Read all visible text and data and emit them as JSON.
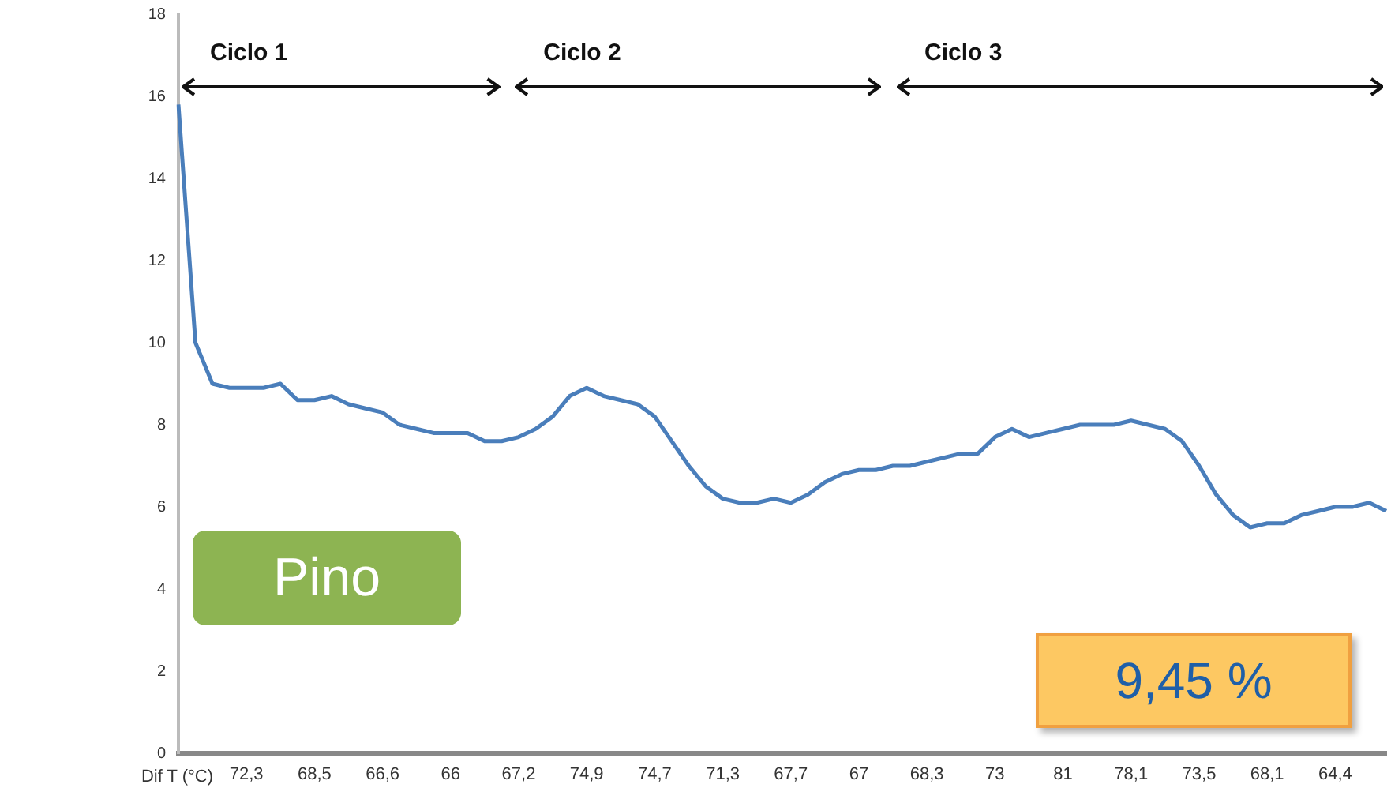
{
  "chart_data": {
    "type": "line",
    "xlabel": "Dif T (°C)",
    "categories": [
      null,
      null,
      null,
      null,
      "72,3",
      null,
      null,
      null,
      "68,5",
      null,
      null,
      null,
      "66,6",
      null,
      null,
      null,
      "66",
      null,
      null,
      null,
      "67,2",
      null,
      null,
      null,
      "74,9",
      null,
      null,
      null,
      "74,7",
      null,
      null,
      null,
      "71,3",
      null,
      null,
      null,
      "67,7",
      null,
      null,
      null,
      "67",
      null,
      null,
      null,
      "68,3",
      null,
      null,
      null,
      "73",
      null,
      null,
      null,
      "81",
      null,
      null,
      null,
      "78,1",
      null,
      null,
      null,
      "73,5",
      null,
      null,
      null,
      "68,1",
      null,
      null,
      null,
      "64,4",
      null,
      null,
      null
    ],
    "series": [
      {
        "color": "#4a7ebb",
        "values": [
          15.8,
          10.0,
          9.0,
          8.9,
          8.9,
          8.9,
          9.0,
          8.6,
          8.6,
          8.7,
          8.5,
          8.4,
          8.3,
          8.0,
          7.9,
          7.8,
          7.8,
          7.8,
          7.6,
          7.6,
          7.7,
          7.9,
          8.2,
          8.7,
          8.9,
          8.7,
          8.6,
          8.5,
          8.2,
          7.6,
          7.0,
          6.5,
          6.2,
          6.1,
          6.1,
          6.2,
          6.1,
          6.3,
          6.6,
          6.8,
          6.9,
          6.9,
          7.0,
          7.0,
          7.1,
          7.2,
          7.3,
          7.3,
          7.7,
          7.9,
          7.7,
          7.8,
          7.9,
          8.0,
          8.0,
          8.0,
          8.1,
          8.0,
          7.9,
          7.6,
          7.0,
          6.3,
          5.8,
          5.5,
          5.6,
          5.6,
          5.8,
          5.9,
          6.0,
          6.0,
          6.1,
          5.9
        ]
      }
    ],
    "ylim": [
      0,
      18
    ],
    "yticks": [
      0,
      2,
      4,
      6,
      8,
      10,
      12,
      14,
      16,
      18
    ],
    "grid": false,
    "legend": false,
    "marker": "none",
    "line_style": "solid",
    "annotations": [
      "Ciclo 1",
      "Ciclo 2",
      "Ciclo 3",
      "Pino",
      "9,45 %"
    ]
  }
}
